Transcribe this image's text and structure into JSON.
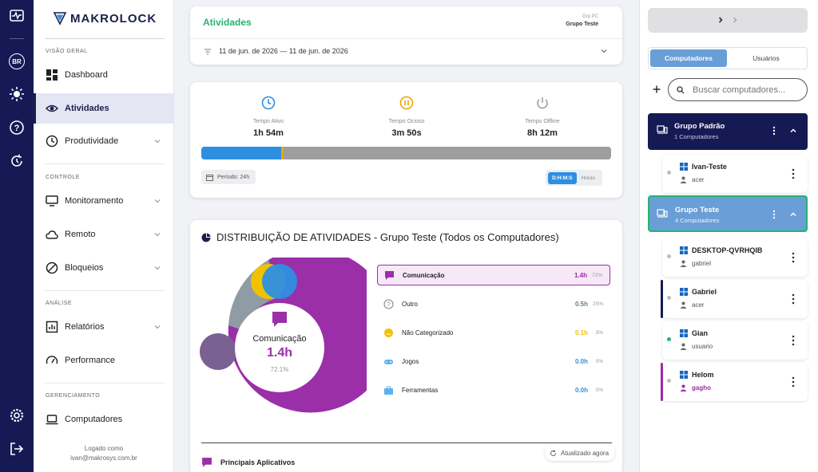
{
  "app": {
    "brand": "MAKROLOCK",
    "language_badge": "BR"
  },
  "sidebar": {
    "sections": {
      "overview": "VISÃO GERAL",
      "control": "CONTROLE",
      "analysis": "ANÁLISE",
      "management": "GERENCIAMENTO"
    },
    "items": {
      "dashboard": "Dashboard",
      "activities": "Atividades",
      "productivity": "Produtividade",
      "monitoring": "Monitoramento",
      "remote": "Remoto",
      "blocks": "Bloqueios",
      "reports": "Relatórios",
      "performance": "Performance",
      "computers": "Computadores"
    },
    "logged_label": "Logado como",
    "logged_email": "ivan@makrosys.com.br"
  },
  "header": {
    "title": "Atividades",
    "group_caption": "Grp PC",
    "group_name": "Grupo Teste",
    "date_range": "11 de jun. de 2026 — 11 de jun. de 2026"
  },
  "summary": {
    "active_label": "Tempo Ativo",
    "active_value": "1h 54m",
    "idle_label": "Tempo Ocioso",
    "idle_value": "3m 50s",
    "offline_label": "Tempo Offline",
    "offline_value": "8h 12m",
    "progress": {
      "active_pct": 19.5,
      "idle_pct": 0.6,
      "offline_pct": 79.9
    },
    "period": "Período: 24h",
    "format_active": "D:H:M:S",
    "format_other": "Horas",
    "colors": {
      "active": "#2d8fe2",
      "idle": "#f0a500",
      "offline": "#9e9e9e"
    }
  },
  "distribution": {
    "title": "DISTRIBUIÇÃO DE ATIVIDADES - Grupo Teste (Todos os Computadores)",
    "center_label": "Comunicação",
    "center_value": "1.4h",
    "center_pct": "72.1%",
    "legend": [
      {
        "label": "Comunicação",
        "value": "1.4h",
        "pct": "72%",
        "color": "#9a2fa8",
        "icon": "chat-icon"
      },
      {
        "label": "Outro",
        "value": "0.5h",
        "pct": "25%",
        "color": "#607d8b",
        "icon": "help-circle-icon"
      },
      {
        "label": "Não Categorizado",
        "value": "0.1h",
        "pct": "3%",
        "color": "#f2c200",
        "icon": "emoji-icon"
      },
      {
        "label": "Jogos",
        "value": "0.0h",
        "pct": "0%",
        "color": "#2d8fe2",
        "icon": "gamepad-icon"
      },
      {
        "label": "Ferramentas",
        "value": "0.0h",
        "pct": "0%",
        "color": "#2d8fe2",
        "icon": "toolbox-icon"
      }
    ],
    "main_apps_label": "Principais Aplicativos",
    "updated_label": "Atualizado agora"
  },
  "right_panel": {
    "tab_computers": "Computadores",
    "tab_users": "Usuários",
    "search_placeholder": "Buscar computadores...",
    "groups": [
      {
        "name": "Grupo Padrão",
        "count": "1 Computadores"
      },
      {
        "name": "Grupo Teste",
        "count": "4 Computadores"
      }
    ],
    "computers": [
      {
        "name": "Ivan-Teste",
        "user": "acer",
        "status_color": "#bdbdbd"
      },
      {
        "name": "DESKTOP-QVRHQIB",
        "user": "gabriel",
        "status_color": "#bdbdbd"
      },
      {
        "name": "Gabriel",
        "user": "acer",
        "status_color": "#bdbdbd",
        "accent": "#151a55"
      },
      {
        "name": "Gian",
        "user": "usuario",
        "status_color": "#27b371"
      },
      {
        "name": "Helom",
        "user": "gagho",
        "status_color": "#bdbdbd",
        "accent": "#9a2fa8",
        "user_color": "#9a2fa8"
      }
    ]
  }
}
